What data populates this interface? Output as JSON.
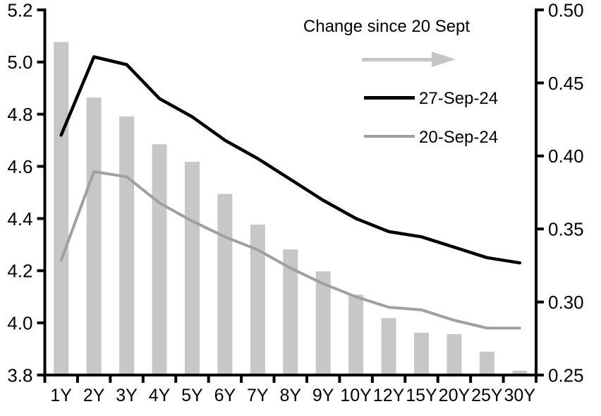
{
  "legend": {
    "title": "Change since 20 Sept",
    "arrow_icon": "right-arrow",
    "items": [
      {
        "label": "27-Sep-24",
        "color": "#000000"
      },
      {
        "label": "20-Sep-24",
        "color": "#a0a0a0"
      }
    ]
  },
  "colors": {
    "bar": "#c7c7c7",
    "arrow": "#c6c6c6",
    "black_line": "#000000",
    "gray_line": "#a0a0a0",
    "axis": "#000000",
    "text": "#000000"
  },
  "chart_data": {
    "type": "combo",
    "grid": false,
    "legend_position": "top-right",
    "categories": [
      "1Y",
      "2Y",
      "3Y",
      "4Y",
      "5Y",
      "6Y",
      "7Y",
      "8Y",
      "9Y",
      "10Y",
      "12Y",
      "15Y",
      "20Y",
      "25Y",
      "30Y"
    ],
    "series": [
      {
        "name": "Change since 20 Sept",
        "type": "bar",
        "axis": "right",
        "values": [
          0.478,
          0.44,
          0.427,
          0.408,
          0.396,
          0.374,
          0.353,
          0.336,
          0.321,
          0.305,
          0.289,
          0.279,
          0.278,
          0.266,
          0.253
        ]
      },
      {
        "name": "27-Sep-24",
        "type": "line",
        "axis": "left",
        "values": [
          4.72,
          5.02,
          4.99,
          4.86,
          4.79,
          4.7,
          4.63,
          4.55,
          4.47,
          4.4,
          4.35,
          4.33,
          4.29,
          4.25,
          4.23
        ]
      },
      {
        "name": "20-Sep-24",
        "type": "line",
        "axis": "left",
        "values": [
          4.24,
          4.58,
          4.56,
          4.46,
          4.39,
          4.33,
          4.28,
          4.21,
          4.15,
          4.1,
          4.06,
          4.05,
          4.01,
          3.98,
          3.98
        ]
      }
    ],
    "left_axis": {
      "min": 3.8,
      "max": 5.2,
      "tick_labels": [
        "5.2",
        "5.0",
        "4.8",
        "4.6",
        "4.4",
        "4.2",
        "4.0",
        "3.8"
      ]
    },
    "right_axis": {
      "min": 0.25,
      "max": 0.5,
      "tick_labels": [
        "0.50",
        "0.45",
        "0.40",
        "0.35",
        "0.30",
        "0.25"
      ]
    }
  }
}
